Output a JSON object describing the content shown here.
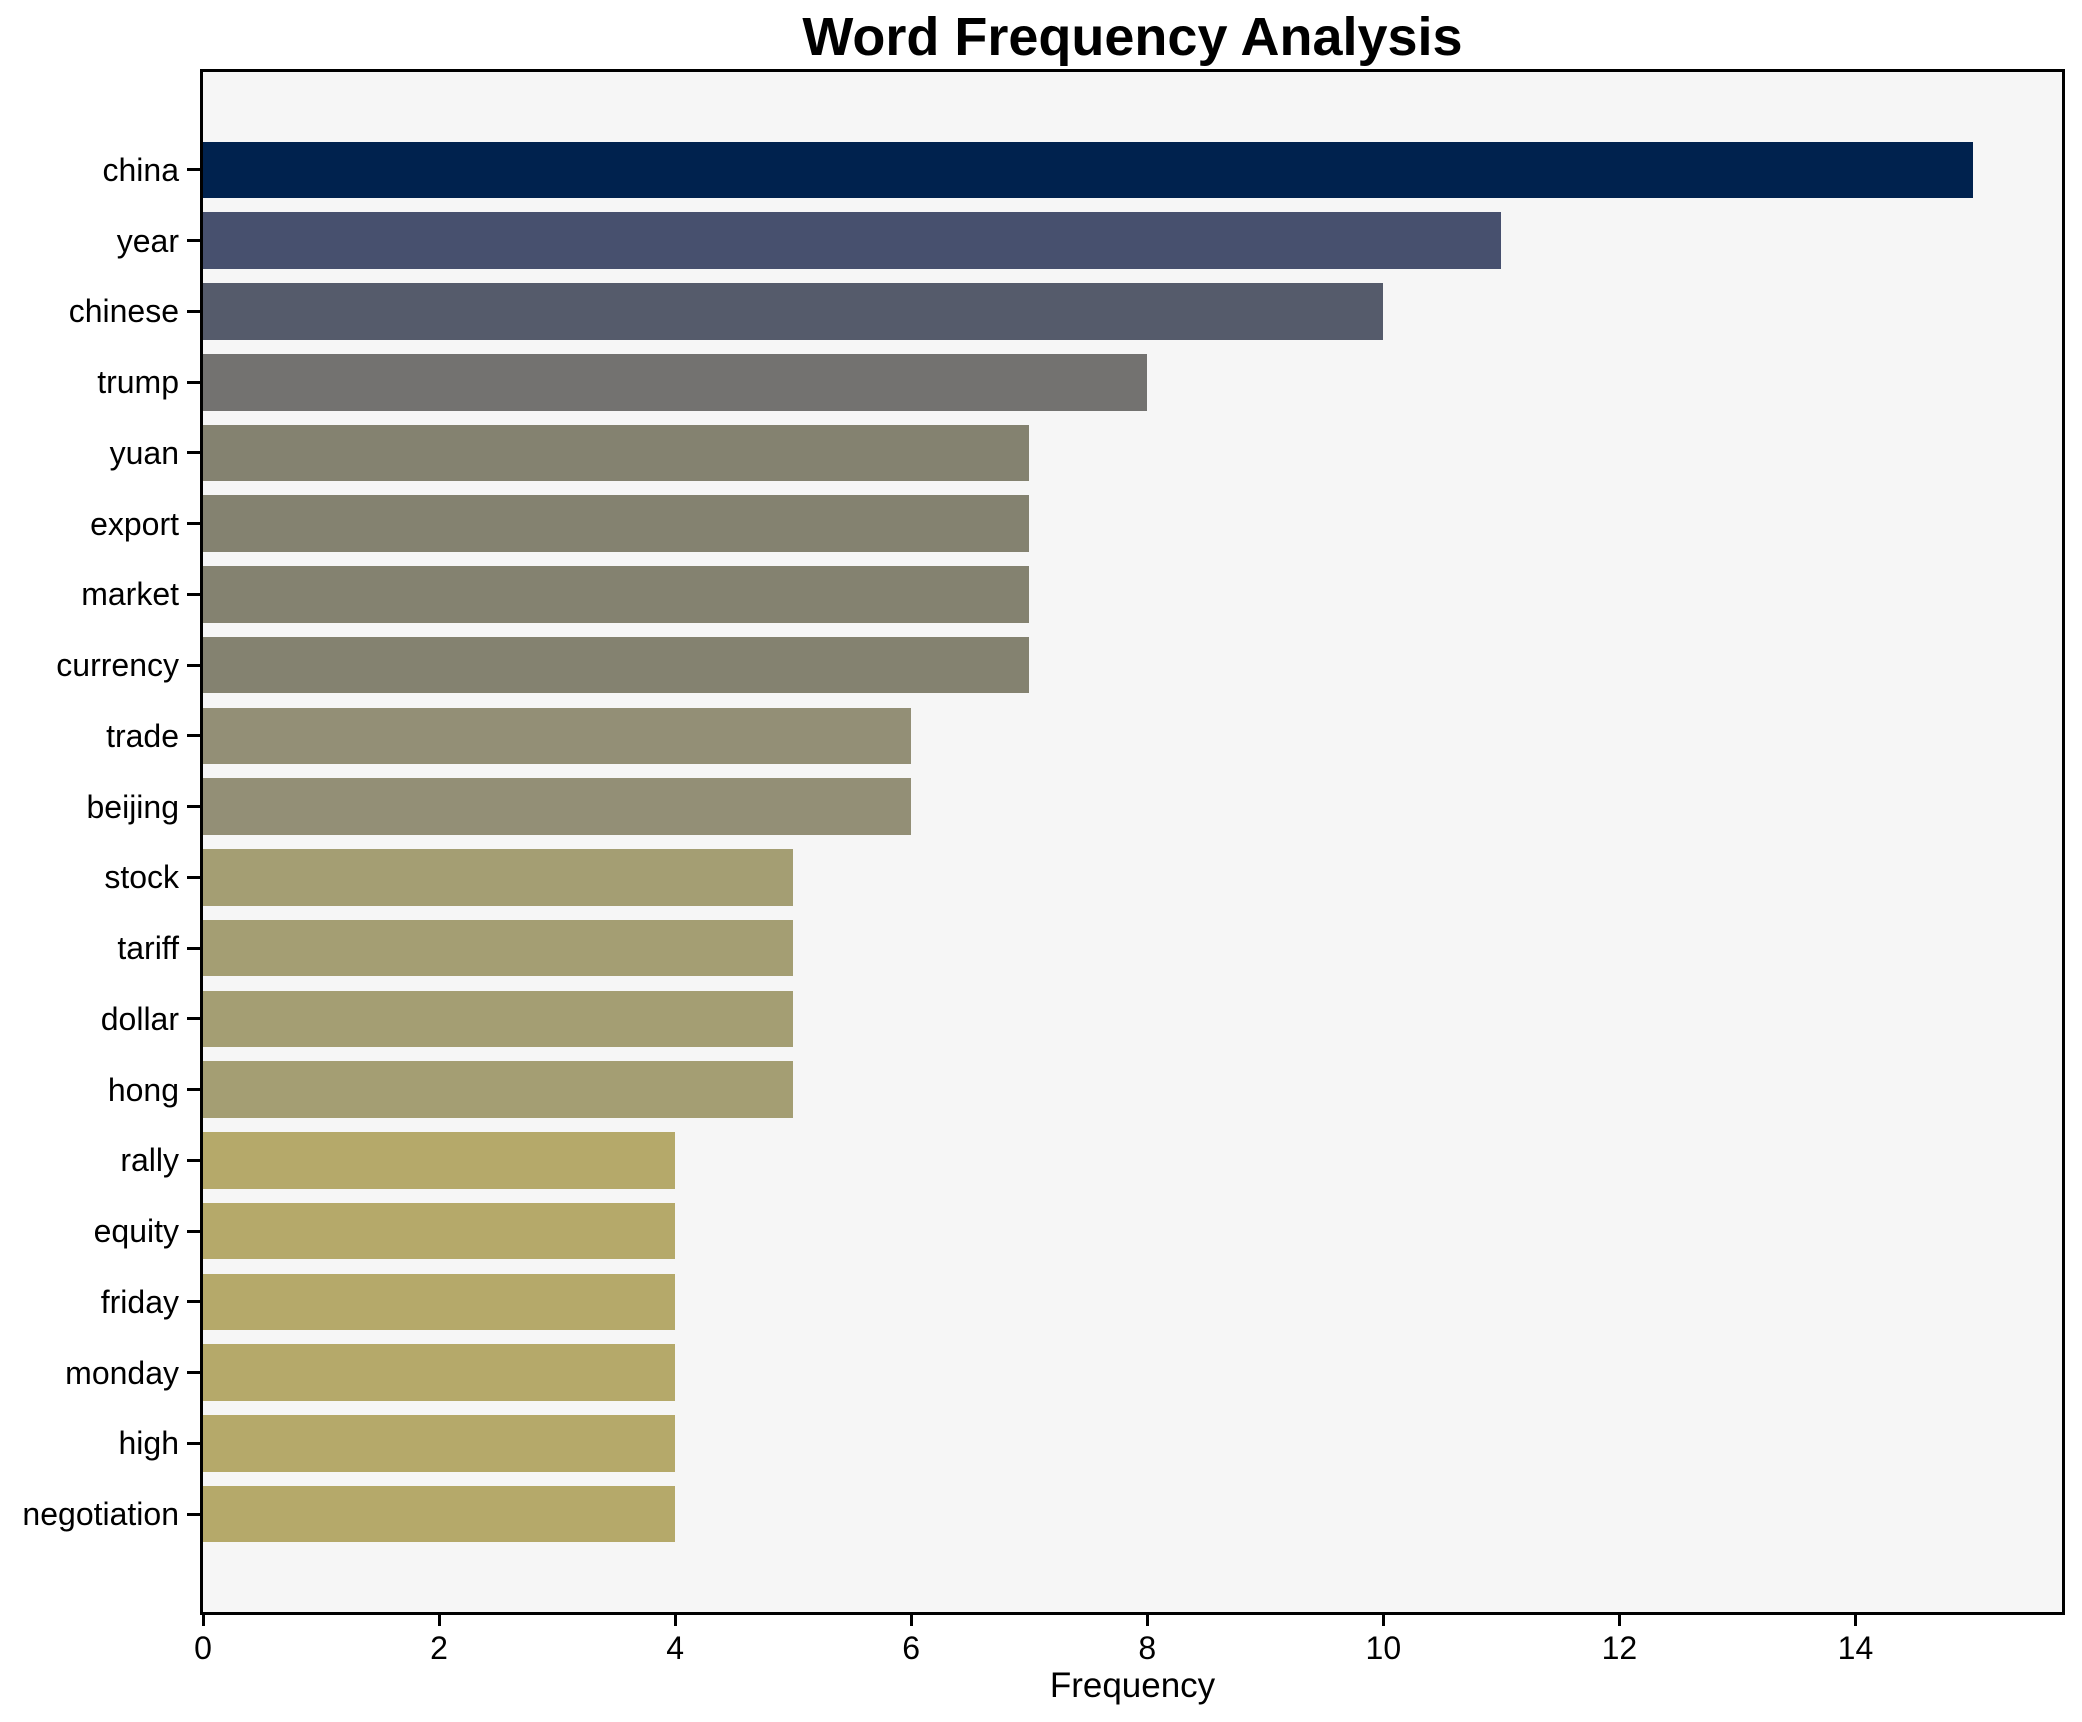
{
  "title": "Word Frequency Analysis",
  "chart_data": {
    "type": "bar",
    "orientation": "horizontal",
    "title": "Word Frequency Analysis",
    "xlabel": "Frequency",
    "ylabel": "",
    "categories": [
      "china",
      "year",
      "chinese",
      "trump",
      "yuan",
      "export",
      "market",
      "currency",
      "trade",
      "beijing",
      "stock",
      "tariff",
      "dollar",
      "hong",
      "rally",
      "equity",
      "friday",
      "monday",
      "high",
      "negotiation"
    ],
    "values": [
      15,
      11,
      10,
      8,
      7,
      7,
      7,
      7,
      6,
      6,
      5,
      5,
      5,
      5,
      4,
      4,
      4,
      4,
      4,
      4
    ],
    "bar_colors": [
      "#00224e",
      "#47506e",
      "#555b6b",
      "#737270",
      "#848270",
      "#848270",
      "#848270",
      "#848270",
      "#938f76",
      "#938f76",
      "#a49e73",
      "#a49e73",
      "#a49e73",
      "#a49e73",
      "#b5a96a",
      "#b5a96a",
      "#b5a96a",
      "#b5a96a",
      "#b5a96a",
      "#b5a96a"
    ],
    "xlim": [
      0,
      15.75
    ],
    "x_ticks": [
      0,
      2,
      4,
      6,
      8,
      10,
      12,
      14
    ],
    "grid": false,
    "legend": null,
    "plot_background": "#f6f6f6",
    "figure_background": "#ffffff",
    "spine_color": "#000000"
  }
}
